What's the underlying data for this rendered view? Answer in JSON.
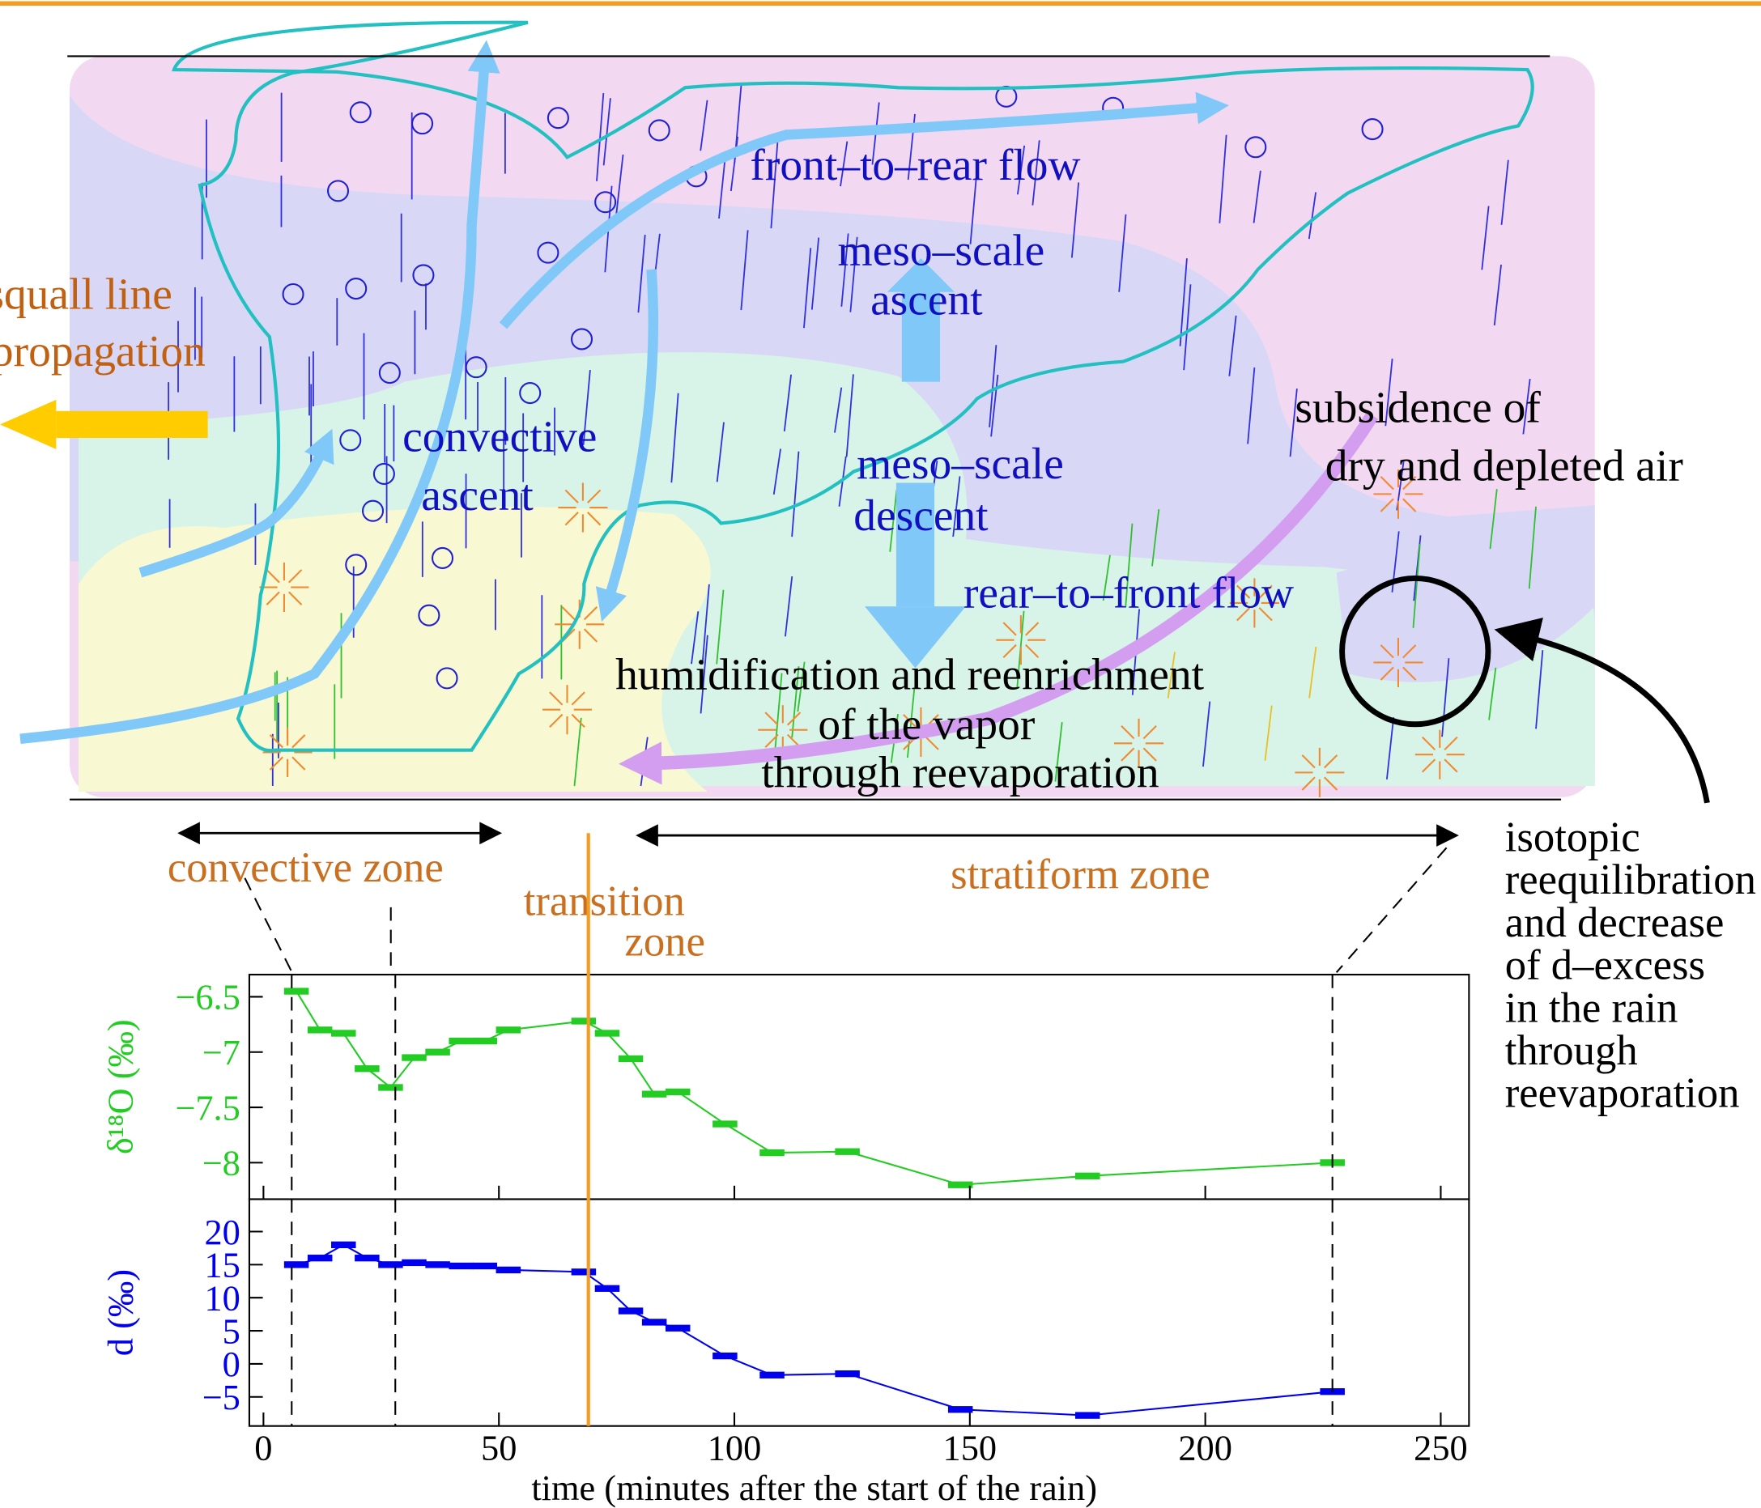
{
  "diagram": {
    "squall": [
      "squall line",
      "propagation"
    ],
    "front_to_rear": "front–to–rear flow",
    "meso_ascent": [
      "meso–scale",
      "ascent"
    ],
    "convective_ascent": [
      "convective",
      "ascent"
    ],
    "meso_descent": [
      "meso–scale",
      "descent"
    ],
    "rear_to_front": "rear–to–front flow",
    "subsidence": [
      "subsidence of",
      "dry and depleted air"
    ],
    "humidification": [
      "humidification and reenrichment",
      "of the vapor",
      "through reevaporation"
    ],
    "convective_zone": "convective zone",
    "transition_zone": [
      "transition",
      "zone"
    ],
    "stratiform_zone": "stratiform zone",
    "isotopic": [
      "isotopic",
      "reequilibration",
      "and decrease",
      "of d–excess",
      "in the rain",
      "through",
      "reevaporation"
    ]
  },
  "markers": {
    "dashed": [
      6,
      28,
      227
    ],
    "transition": 69,
    "color": "#f39c1f"
  },
  "chart_data": [
    {
      "type": "line",
      "ylabel": "δ¹⁸O (‰)",
      "color": "#22cc22",
      "x": [
        7,
        12,
        17,
        22,
        27,
        32,
        37,
        42,
        47,
        52,
        68,
        73,
        78,
        83,
        88,
        98,
        108,
        124,
        148,
        175,
        227
      ],
      "values": [
        -6.45,
        -6.8,
        -6.83,
        -7.15,
        -7.32,
        -7.05,
        -7.0,
        -6.9,
        -6.9,
        -6.8,
        -6.72,
        -6.83,
        -7.06,
        -7.38,
        -7.36,
        -7.65,
        -7.91,
        -7.9,
        -8.2,
        -8.12,
        -8.0
      ],
      "xlim": [
        -3,
        256
      ],
      "ylim": [
        -8.33,
        -6.3
      ],
      "yticks": [
        {
          "value": -6.5,
          "label": "−6.5"
        },
        {
          "value": -7,
          "label": "−7"
        },
        {
          "value": -7.5,
          "label": "−7.5"
        },
        {
          "value": -8,
          "label": "−8"
        }
      ]
    },
    {
      "type": "line",
      "ylabel": "d (‰)",
      "xlabel": "time (minutes after the start of the rain)",
      "color": "#0000ee",
      "x": [
        7,
        12,
        17,
        22,
        27,
        32,
        37,
        42,
        47,
        52,
        68,
        73,
        78,
        83,
        88,
        98,
        108,
        124,
        148,
        175,
        227
      ],
      "values": [
        15,
        16,
        18,
        16,
        15,
        15.3,
        15,
        14.8,
        14.8,
        14.2,
        13.9,
        11.4,
        8,
        6.3,
        5.4,
        1.2,
        -1.7,
        -1.5,
        -6.9,
        -7.8,
        -4.2
      ],
      "xlim": [
        -3,
        256
      ],
      "ylim": [
        -9.4,
        24.9
      ],
      "yticks": [
        20,
        15,
        10,
        5,
        0,
        {
          "value": -5,
          "label": "−5"
        }
      ],
      "xticks": [
        0,
        50,
        100,
        150,
        200,
        250
      ]
    }
  ]
}
